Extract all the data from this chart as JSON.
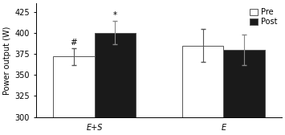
{
  "groups": [
    "E+S",
    "E"
  ],
  "pre_values": [
    372,
    385
  ],
  "post_values": [
    400,
    380
  ],
  "pre_errors": [
    10,
    20
  ],
  "post_errors": [
    14,
    18
  ],
  "bar_width": 0.32,
  "group_positions": [
    0.75,
    1.75
  ],
  "ylim": [
    300,
    435
  ],
  "yticks": [
    300,
    325,
    350,
    375,
    400,
    425
  ],
  "ybase": 300,
  "ylabel": "Power output (W)",
  "pre_color": "#ffffff",
  "post_color": "#1a1a1a",
  "edge_color": "#555555",
  "err_color_pre": "#555555",
  "err_color_post": "#888888",
  "annotation_es_pre": "#",
  "annotation_es_post": "*",
  "legend_pre": "Pre",
  "legend_post": "Post",
  "figsize": [
    3.55,
    1.68
  ],
  "dpi": 100
}
